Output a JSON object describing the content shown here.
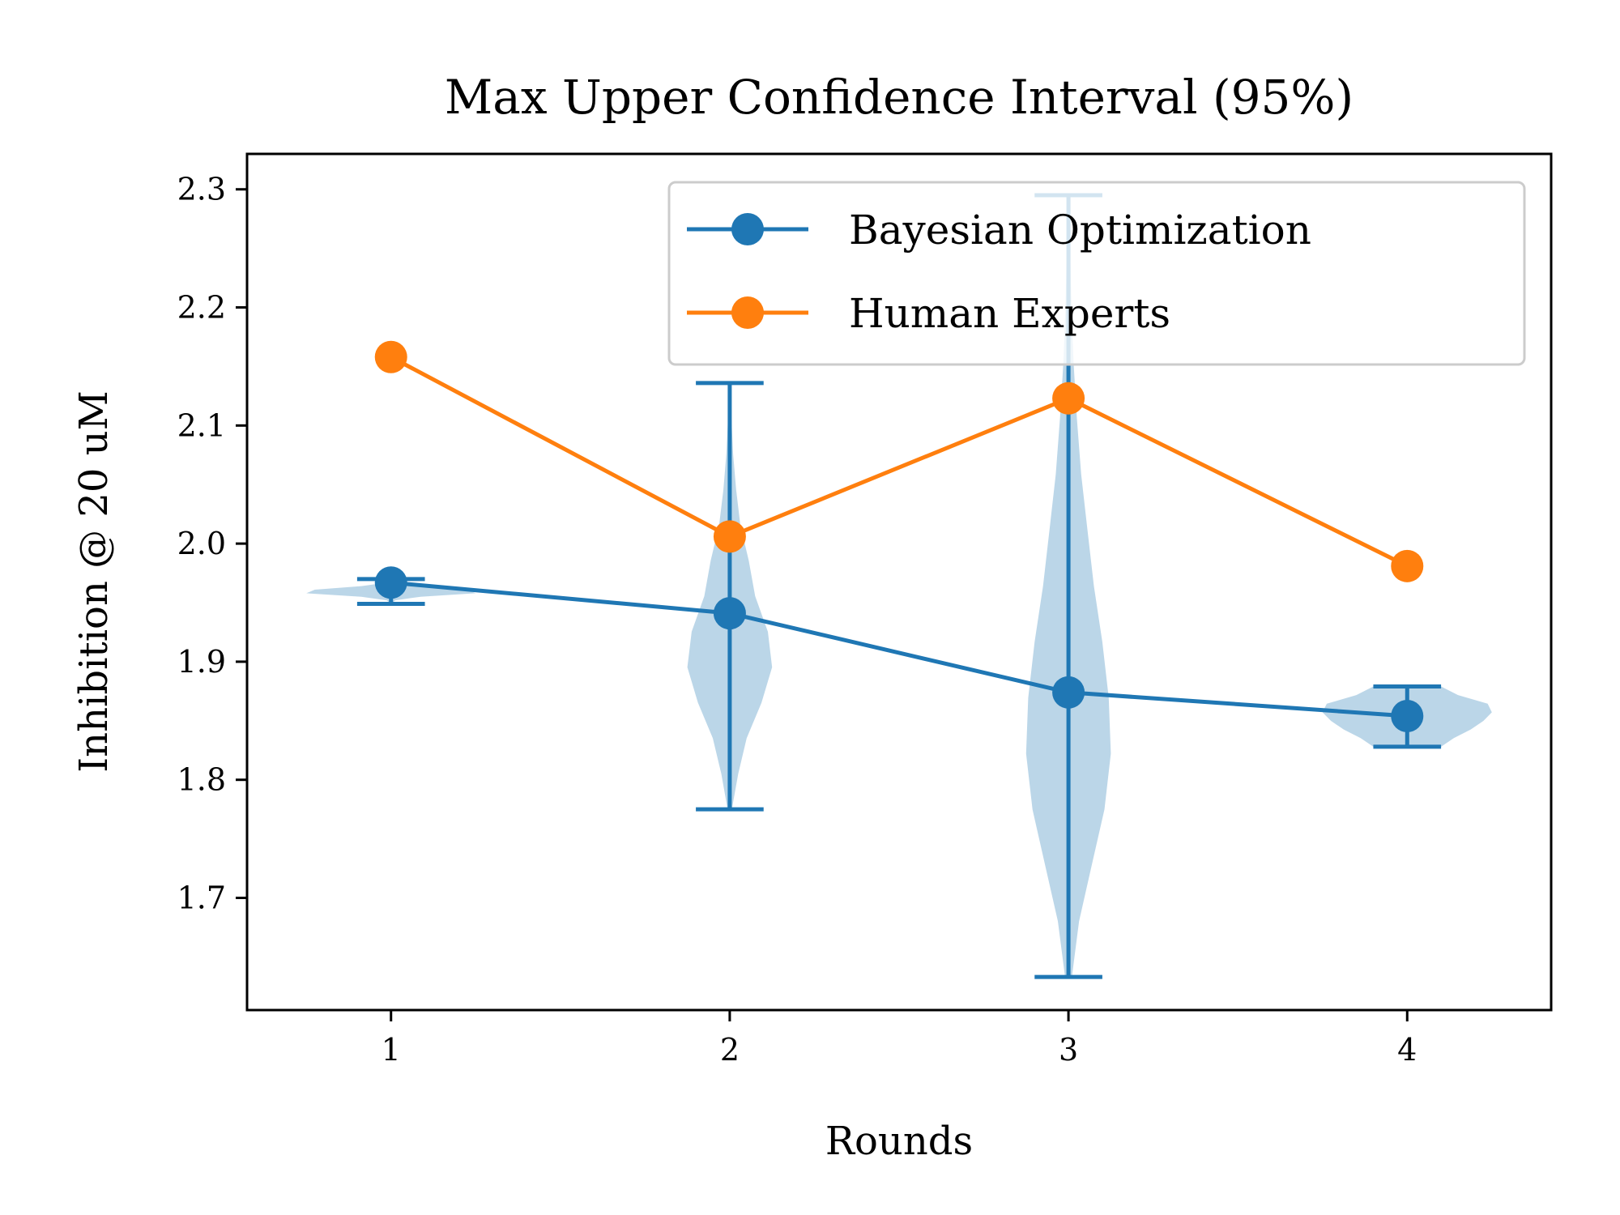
{
  "chart_data": {
    "type": "line",
    "title": "Max Upper Confidence Interval (95%)",
    "xlabel": "Rounds",
    "ylabel": "Inhibition @ 20 uM",
    "x": [
      1,
      2,
      3,
      4
    ],
    "x_ticks": [
      1,
      2,
      3,
      4
    ],
    "xlim": [
      0.575,
      4.425
    ],
    "y_ticks": [
      1.7,
      1.8,
      1.9,
      2.0,
      2.1,
      2.2,
      2.3
    ],
    "ylim": [
      1.605,
      2.33
    ],
    "grid": false,
    "legend_position": "top-right",
    "series": [
      {
        "name": "Bayesian Optimization",
        "color": "#1f77b4",
        "values": [
          1.967,
          1.941,
          1.874,
          1.854
        ],
        "ranges": [
          [
            1.949,
            1.97
          ],
          [
            1.775,
            2.136
          ],
          [
            1.633,
            2.295
          ],
          [
            1.828,
            1.879
          ]
        ]
      },
      {
        "name": "Human Experts",
        "color": "#ff7f0e",
        "values": [
          2.158,
          2.006,
          2.123,
          1.981
        ]
      }
    ],
    "violin_color": "#1f77b4"
  }
}
